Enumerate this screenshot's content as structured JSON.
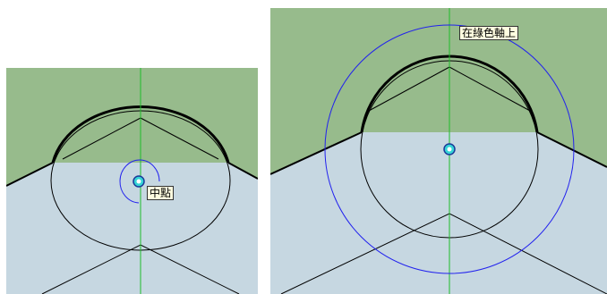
{
  "colors": {
    "ground": "#97bb8c",
    "face": "#c6d7e1",
    "edge": "#000000",
    "axis_green": "#1fbd2a",
    "inference_blue": "#2222ee",
    "snap_point": "#35d4d6"
  },
  "icons": {
    "snap_point": "cyan-endpoint-marker-icon"
  },
  "left_view": {
    "tooltip": "中點"
  },
  "right_view": {
    "tooltip": "在綠色軸上"
  }
}
